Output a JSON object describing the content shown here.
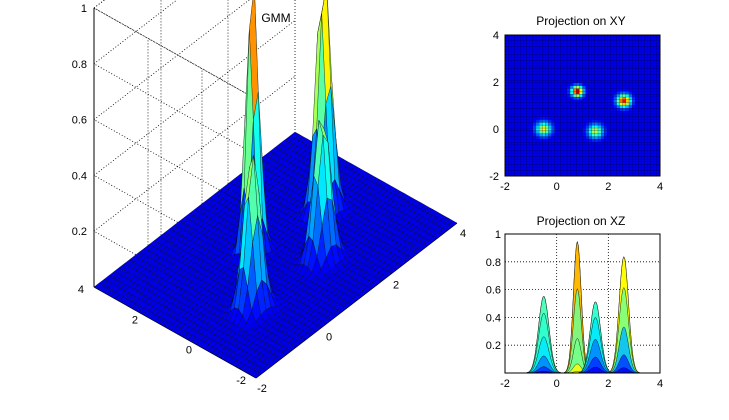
{
  "figure": {
    "background": "#ffffff",
    "colormap": "jet"
  },
  "chart_data": [
    {
      "type": "surface",
      "title": "GMM",
      "xlabel": "",
      "ylabel": "",
      "zlabel": "",
      "xlim": [
        -2,
        4
      ],
      "ylim": [
        -2,
        4
      ],
      "zlim": [
        0,
        1
      ],
      "x_ticks": [
        "-2",
        "0",
        "2",
        "4"
      ],
      "y_ticks": [
        "-2",
        "0",
        "2",
        "4"
      ],
      "z_ticks": [
        "0.2",
        "0.4",
        "0.6",
        "0.8",
        "1"
      ],
      "grid": true,
      "components": [
        {
          "mean": [
            -0.5,
            0.0
          ],
          "sigma": 0.2,
          "peak": 0.57
        },
        {
          "mean": [
            0.8,
            1.6
          ],
          "sigma": 0.15,
          "peak": 1.0
        },
        {
          "mean": [
            1.5,
            -0.1
          ],
          "sigma": 0.2,
          "peak": 0.53
        },
        {
          "mean": [
            2.6,
            1.2
          ],
          "sigma": 0.18,
          "peak": 0.87
        }
      ]
    },
    {
      "type": "heatmap",
      "title": "Projection on XY",
      "xlim": [
        -2,
        4
      ],
      "ylim": [
        -2,
        4
      ],
      "x_ticks": [
        "-2",
        "0",
        "2",
        "4"
      ],
      "y_ticks": [
        "-2",
        "0",
        "2",
        "4"
      ],
      "grid": false
    },
    {
      "type": "area",
      "title": "Projection on XZ",
      "xlim": [
        -2,
        4
      ],
      "ylim": [
        0,
        1
      ],
      "x_ticks": [
        "-2",
        "0",
        "2",
        "4"
      ],
      "y_ticks": [
        "0.2",
        "0.4",
        "0.6",
        "0.8",
        "1"
      ],
      "grid": true
    }
  ]
}
